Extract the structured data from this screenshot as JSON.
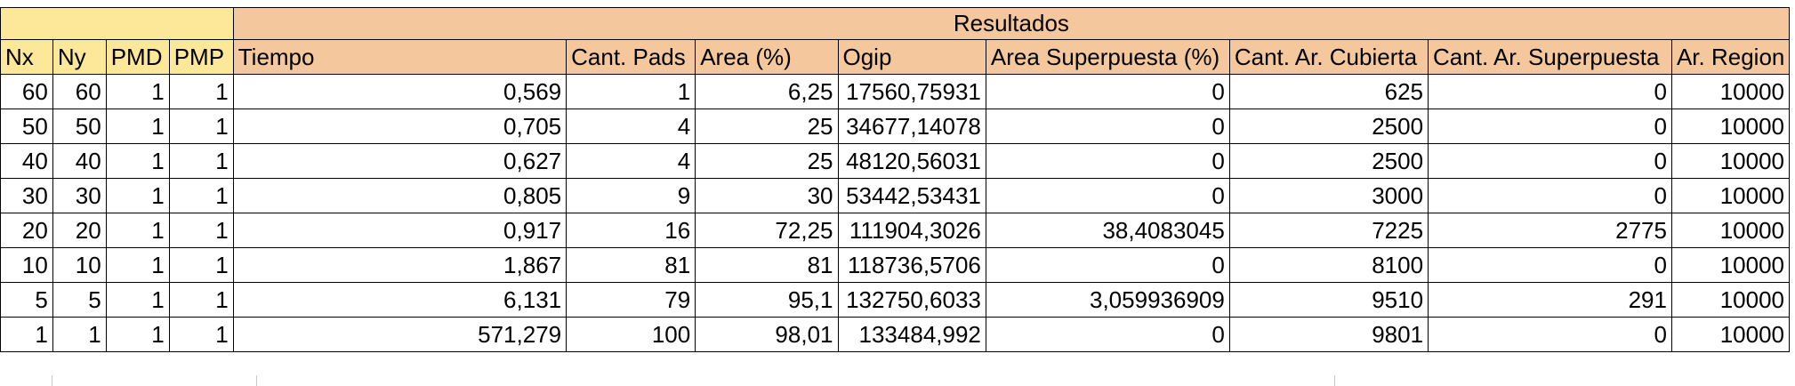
{
  "group_header": {
    "label": "Resultados"
  },
  "headers": [
    "Nx",
    "Ny",
    "PMD",
    "PMP",
    "Tiempo",
    "Cant. Pads",
    "Area (%)",
    "Ogip",
    "Area Superpuesta (%)",
    "Cant. Ar. Cubierta",
    "Cant. Ar. Superpuesta",
    "Ar. Region"
  ],
  "rows": [
    [
      "60",
      "60",
      "1",
      "1",
      "0,569",
      "1",
      "6,25",
      "17560,75931",
      "0",
      "625",
      "0",
      "10000"
    ],
    [
      "50",
      "50",
      "1",
      "1",
      "0,705",
      "4",
      "25",
      "34677,14078",
      "0",
      "2500",
      "0",
      "10000"
    ],
    [
      "40",
      "40",
      "1",
      "1",
      "0,627",
      "4",
      "25",
      "48120,56031",
      "0",
      "2500",
      "0",
      "10000"
    ],
    [
      "30",
      "30",
      "1",
      "1",
      "0,805",
      "9",
      "30",
      "53442,53431",
      "0",
      "3000",
      "0",
      "10000"
    ],
    [
      "20",
      "20",
      "1",
      "1",
      "0,917",
      "16",
      "72,25",
      "111904,3026",
      "38,4083045",
      "7225",
      "2775",
      "10000"
    ],
    [
      "10",
      "10",
      "1",
      "1",
      "1,867",
      "81",
      "81",
      "118736,5706",
      "0",
      "8100",
      "0",
      "10000"
    ],
    [
      "5",
      "5",
      "1",
      "1",
      "6,131",
      "79",
      "95,1",
      "132750,6033",
      "3,059936909",
      "9510",
      "291",
      "10000"
    ],
    [
      "1",
      "1",
      "1",
      "1",
      "571,279",
      "100",
      "98,01",
      "133484,992",
      "0",
      "9801",
      "0",
      "10000"
    ]
  ],
  "colors": {
    "yellow_header": "#fde798",
    "orange_header": "#f5c79d",
    "grid": "#000000"
  }
}
